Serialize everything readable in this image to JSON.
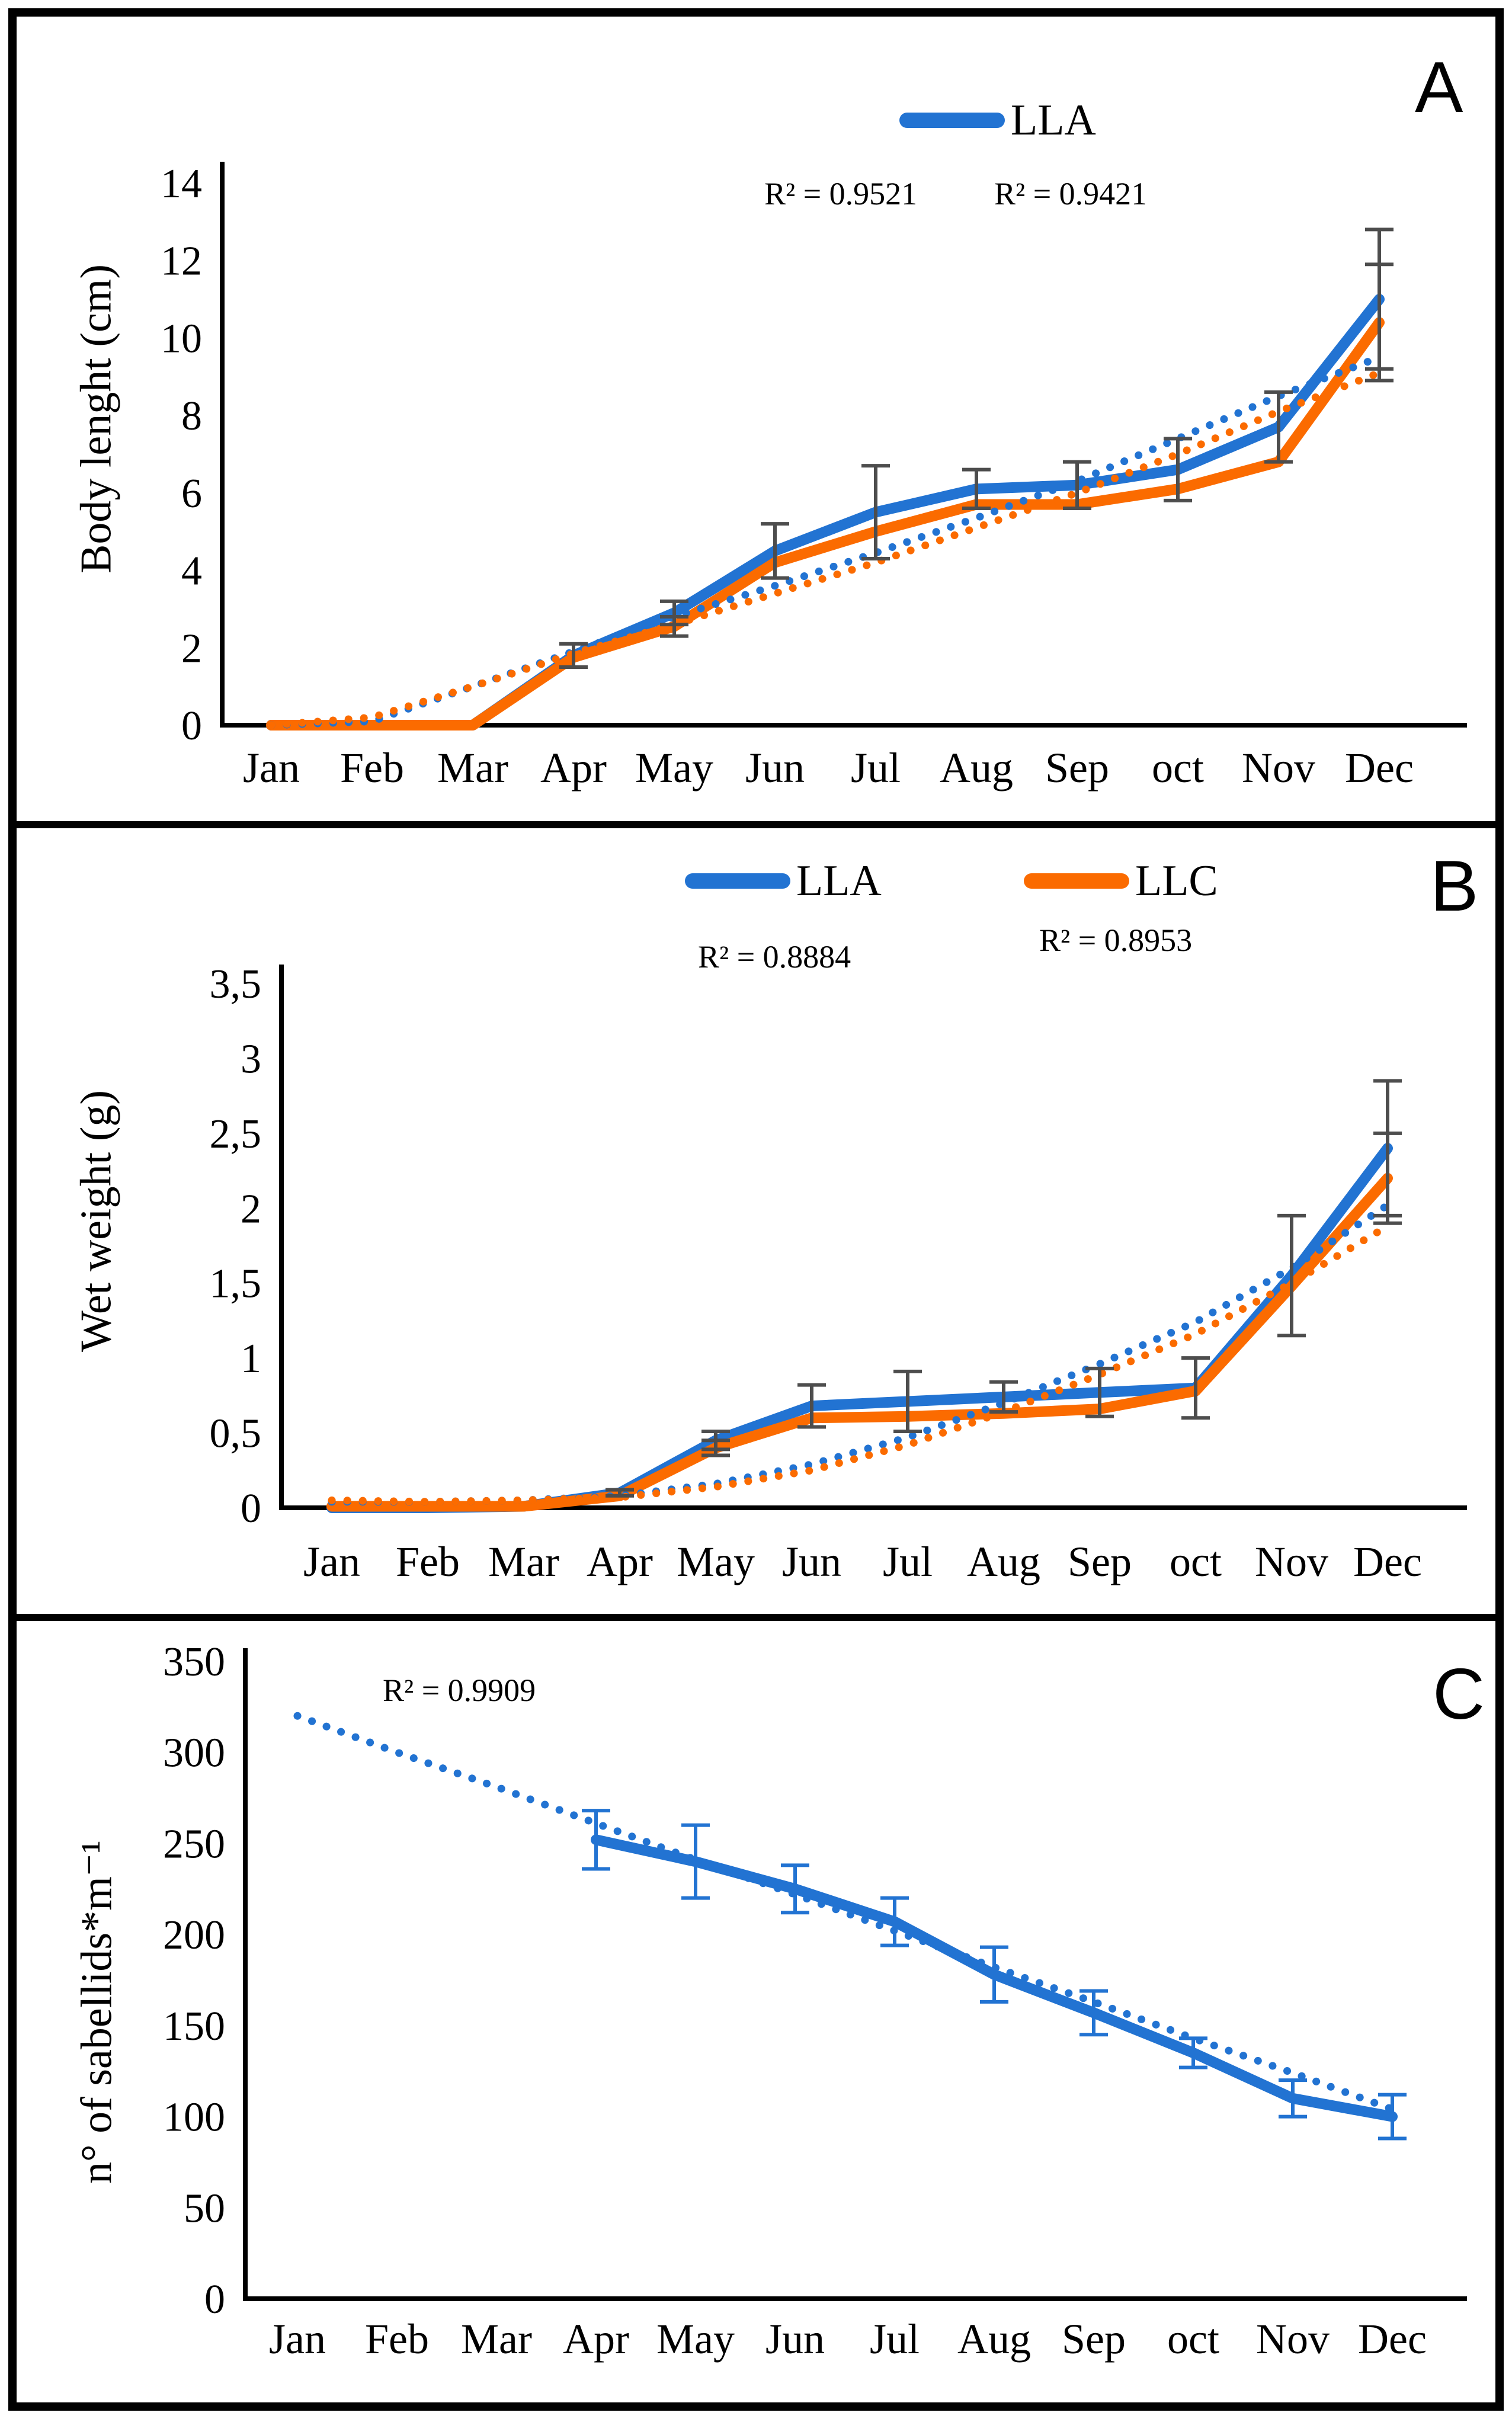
{
  "figure": {
    "background": "#ffffff",
    "frame_color": "#000000"
  },
  "colors": {
    "lla_blue": "#2273D2",
    "llc_orange": "#FB6B00",
    "error_bar_gray": "#4D4D4D",
    "axis_black": "#000000"
  },
  "panels": [
    {
      "letter": "A"
    },
    {
      "letter": "B"
    },
    {
      "letter": "C"
    }
  ],
  "chart_data": [
    {
      "type": "line",
      "panel": "A",
      "title": "",
      "xlabel": "",
      "ylabel": "Body lenght (cm)",
      "x": [
        "Jan",
        "Feb",
        "Mar",
        "Apr",
        "May",
        "Jun",
        "Jul",
        "Aug",
        "Sep",
        "oct",
        "Nov",
        "Dec"
      ],
      "ylim": [
        0,
        14
      ],
      "yticks": [
        0,
        2,
        4,
        6,
        8,
        10,
        12,
        14
      ],
      "ytick_labels": [
        "0",
        "2",
        "4",
        "6",
        "8",
        "10",
        "12",
        "14"
      ],
      "grid": false,
      "legend_position": "top-center",
      "legend": [
        {
          "label": "LLA",
          "color": "#2273D2"
        }
      ],
      "annotations": [
        "R² = 0.9521",
        "R² = 0.9421"
      ],
      "series": [
        {
          "name": "LLA",
          "style": "solid",
          "color": "#2273D2",
          "values": [
            0,
            0,
            0,
            1.8,
            2.9,
            4.5,
            5.5,
            6.1,
            6.2,
            6.6,
            7.7,
            11.0
          ],
          "errors": [
            0,
            0,
            0,
            0.3,
            0.3,
            0.7,
            1.2,
            0.5,
            0.6,
            0.8,
            0.9,
            1.8
          ],
          "error_color": "#4D4D4D"
        },
        {
          "name": "LLC",
          "style": "solid",
          "color": "#FB6B00",
          "values": [
            0,
            0,
            0,
            1.75,
            2.55,
            4.2,
            5.0,
            5.7,
            5.7,
            6.1,
            6.8,
            10.4
          ],
          "errors": [
            0,
            0,
            0,
            0,
            0.25,
            0,
            0,
            0,
            0,
            0,
            0,
            1.5
          ],
          "error_color": "#4D4D4D"
        },
        {
          "name": "LLA trend",
          "style": "dotted",
          "color": "#2273D2",
          "values": [
            0,
            0.1,
            1.0,
            1.9,
            2.8,
            3.6,
            4.45,
            5.35,
            6.3,
            7.4,
            8.5,
            9.5
          ]
        },
        {
          "name": "LLC trend",
          "style": "dotted",
          "color": "#FB6B00",
          "values": [
            0,
            0.2,
            1.0,
            1.85,
            2.6,
            3.4,
            4.2,
            5.1,
            6.0,
            7.0,
            8.1,
            9.1
          ]
        }
      ]
    },
    {
      "type": "line",
      "panel": "B",
      "title": "",
      "xlabel": "",
      "ylabel": "Wet weight (g)",
      "x": [
        "Jan",
        "Feb",
        "Mar",
        "Apr",
        "May",
        "Jun",
        "Jul",
        "Aug",
        "Sep",
        "oct",
        "Nov",
        "Dec"
      ],
      "ylim": [
        0,
        3.5
      ],
      "yticks": [
        0,
        0.5,
        1,
        1.5,
        2,
        2.5,
        3,
        3.5
      ],
      "ytick_labels": [
        "0",
        "0,5",
        "1",
        "1,5",
        "2",
        "2,5",
        "3",
        "3,5"
      ],
      "grid": false,
      "legend_position": "top-center",
      "legend": [
        {
          "label": "LLA",
          "color": "#2273D2"
        },
        {
          "label": "LLC",
          "color": "#FB6B00"
        }
      ],
      "annotations": [
        "R² = 0.8884",
        "R² = 0.8953"
      ],
      "series": [
        {
          "name": "LLA",
          "style": "solid",
          "color": "#2273D2",
          "values": [
            0,
            0,
            0.01,
            0.1,
            0.45,
            0.68,
            0.71,
            0.74,
            0.77,
            0.8,
            1.55,
            2.4
          ],
          "errors": [
            0,
            0,
            0,
            0.02,
            0.06,
            0.14,
            0.2,
            0.1,
            0.16,
            0.2,
            0.4,
            0.45
          ],
          "error_color": "#4D4D4D"
        },
        {
          "name": "LLC",
          "style": "solid",
          "color": "#FB6B00",
          "values": [
            0.01,
            0.01,
            0.01,
            0.08,
            0.4,
            0.6,
            0.61,
            0.63,
            0.66,
            0.78,
            1.48,
            2.2
          ],
          "errors": [
            0,
            0,
            0,
            0,
            0.05,
            0,
            0,
            0,
            0,
            0,
            0,
            0.3
          ],
          "error_color": "#4D4D4D"
        },
        {
          "name": "LLA trend",
          "style": "dotted",
          "color": "#2273D2",
          "values": [
            0.04,
            0.04,
            0.05,
            0.08,
            0.16,
            0.29,
            0.47,
            0.7,
            0.96,
            1.24,
            1.6,
            2.02
          ]
        },
        {
          "name": "LLC trend",
          "style": "dotted",
          "color": "#FB6B00",
          "values": [
            0.05,
            0.04,
            0.05,
            0.07,
            0.14,
            0.25,
            0.42,
            0.64,
            0.89,
            1.16,
            1.5,
            1.88
          ]
        }
      ]
    },
    {
      "type": "line",
      "panel": "C",
      "title": "",
      "xlabel": "",
      "ylabel": "n° of sabellids*m⁻¹",
      "x": [
        "Jan",
        "Feb",
        "Mar",
        "Apr",
        "May",
        "Jun",
        "Jul",
        "Aug",
        "Sep",
        "oct",
        "Nov",
        "Dec"
      ],
      "ylim": [
        0,
        350
      ],
      "yticks": [
        0,
        50,
        100,
        150,
        200,
        250,
        300,
        350
      ],
      "ytick_labels": [
        "0",
        "50",
        "100",
        "150",
        "200",
        "250",
        "300",
        "350"
      ],
      "grid": false,
      "legend_position": "none",
      "legend": [],
      "annotations": [
        "R² = 0.9909"
      ],
      "series": [
        {
          "name": "LLA",
          "style": "solid",
          "color": "#2273D2",
          "values": [
            null,
            null,
            null,
            252,
            240,
            225,
            207,
            178,
            157,
            135,
            110,
            100
          ],
          "errors": [
            0,
            0,
            0,
            16,
            20,
            13,
            13,
            15,
            12,
            8,
            10,
            12
          ],
          "error_color": "#2273D2"
        },
        {
          "name": "LLA trend",
          "style": "dotted",
          "color": "#2273D2",
          "values": [
            320,
            300,
            281,
            261,
            241,
            222,
            202,
            182,
            163,
            143,
            124,
            104
          ]
        }
      ]
    }
  ]
}
